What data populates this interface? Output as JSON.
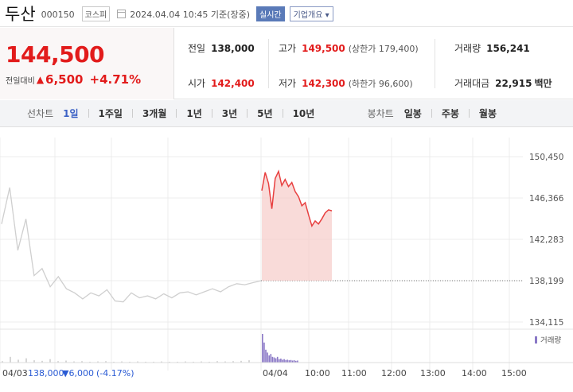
{
  "header": {
    "name": "두산",
    "code": "000150",
    "market": "코스피",
    "timestamp": "2024.04.04 10:45 기준(장중)",
    "realtime_label": "실시간",
    "company_label": "기업개요 ▾"
  },
  "price": {
    "current": "144,500",
    "change_label": "전일대비",
    "change_arrow": "▲",
    "change_amount": "6,500",
    "change_pct": "+4.71%"
  },
  "info": {
    "prev_label": "전일",
    "prev_val": "138,000",
    "open_label": "시가",
    "open_val": "142,400",
    "high_label": "고가",
    "high_val": "149,500",
    "upper_limit": "(상한가 179,400)",
    "low_label": "저가",
    "low_val": "142,300",
    "lower_limit": "(하한가 96,600)",
    "volume_label": "거래량",
    "volume_val": "156,241",
    "amount_label": "거래대금",
    "amount_val": "22,915",
    "amount_unit": "백만"
  },
  "tabs": {
    "line_title": "선차트",
    "line": [
      "1일",
      "1주일",
      "3개월",
      "1년",
      "3년",
      "5년",
      "10년"
    ],
    "candle_title": "봉차트",
    "candle": [
      "일봉",
      "주봉",
      "월봉"
    ]
  },
  "colors": {
    "up": "#e21b1b",
    "down": "#2a5bd4",
    "accent": "#3c62c6"
  },
  "chart_data": {
    "type": "line",
    "price_ticks": [
      "150,450",
      "146,366",
      "142,283",
      "138,199",
      "134,115"
    ],
    "ylim": [
      134115,
      150450
    ],
    "base_price": 138199,
    "x_ticks": [
      "04/03",
      "04/04",
      "10:00",
      "11:00",
      "12:00",
      "13:00",
      "14:00",
      "15:00"
    ],
    "volume_legend": "거래량",
    "prev_day_label": "04/03",
    "prev_close": "138,000",
    "prev_change": "▼6,000",
    "prev_pct": "(-4.17%)",
    "series": [
      {
        "values": [
          [
            0,
            143800
          ],
          [
            1,
            147400
          ],
          [
            2,
            141200
          ],
          [
            3,
            144300
          ],
          [
            4,
            138700
          ],
          [
            5,
            139400
          ],
          [
            6,
            137600
          ],
          [
            7,
            138600
          ],
          [
            8,
            137400
          ],
          [
            9,
            137000
          ],
          [
            10,
            136400
          ],
          [
            11,
            137000
          ],
          [
            12,
            136700
          ],
          [
            13,
            137300
          ],
          [
            14,
            136200
          ],
          [
            15,
            136100
          ],
          [
            16,
            137000
          ],
          [
            17,
            136500
          ],
          [
            18,
            136700
          ],
          [
            19,
            136400
          ],
          [
            20,
            136900
          ],
          [
            21,
            136500
          ],
          [
            22,
            137000
          ],
          [
            23,
            137100
          ],
          [
            24,
            136800
          ],
          [
            25,
            137100
          ],
          [
            26,
            137400
          ],
          [
            27,
            137100
          ],
          [
            28,
            137600
          ],
          [
            29,
            137900
          ],
          [
            30,
            137800
          ],
          [
            31,
            138000
          ],
          [
            32,
            138200
          ]
        ]
      },
      {
        "values": [
          [
            0,
            147100
          ],
          [
            1,
            148900
          ],
          [
            2,
            147800
          ],
          [
            3,
            145300
          ],
          [
            4,
            148300
          ],
          [
            5,
            149000
          ],
          [
            6,
            147600
          ],
          [
            7,
            148200
          ],
          [
            8,
            147500
          ],
          [
            9,
            147900
          ],
          [
            10,
            147000
          ],
          [
            11,
            146500
          ],
          [
            12,
            145600
          ],
          [
            13,
            145900
          ],
          [
            14,
            144700
          ],
          [
            15,
            143600
          ],
          [
            16,
            144100
          ],
          [
            17,
            143800
          ],
          [
            18,
            144300
          ],
          [
            19,
            144900
          ],
          [
            20,
            145200
          ],
          [
            21,
            145100
          ]
        ]
      }
    ],
    "volume": [
      [
        0,
        0.05
      ],
      [
        1,
        0.2
      ],
      [
        2,
        0.1
      ],
      [
        3,
        0.15
      ],
      [
        4,
        0.08
      ],
      [
        5,
        0.06
      ],
      [
        6,
        0.12
      ],
      [
        7,
        0.05
      ],
      [
        8,
        0.07
      ],
      [
        9,
        0.04
      ],
      [
        10,
        0.05
      ],
      [
        11,
        0.03
      ],
      [
        12,
        0.04
      ],
      [
        13,
        0.05
      ],
      [
        14,
        0.03
      ],
      [
        15,
        0.04
      ],
      [
        16,
        0.03
      ],
      [
        17,
        0.04
      ],
      [
        18,
        0.03
      ],
      [
        19,
        0.03
      ],
      [
        20,
        0.04
      ],
      [
        21,
        0.03
      ],
      [
        22,
        0.03
      ],
      [
        23,
        0.04
      ],
      [
        24,
        0.03
      ],
      [
        25,
        0.04
      ],
      [
        26,
        0.03
      ],
      [
        27,
        0.05
      ],
      [
        28,
        0.04
      ],
      [
        29,
        0.05
      ],
      [
        30,
        0.06
      ],
      [
        31,
        0.08
      ],
      [
        32,
        1.0
      ],
      [
        33,
        0.7
      ],
      [
        34,
        0.45
      ],
      [
        35,
        0.35
      ],
      [
        36,
        0.25
      ],
      [
        37,
        0.3
      ],
      [
        38,
        0.2
      ],
      [
        39,
        0.18
      ],
      [
        40,
        0.15
      ],
      [
        41,
        0.2
      ],
      [
        42,
        0.12
      ],
      [
        43,
        0.14
      ],
      [
        44,
        0.1
      ],
      [
        45,
        0.12
      ],
      [
        46,
        0.09
      ],
      [
        47,
        0.1
      ],
      [
        48,
        0.08
      ],
      [
        49,
        0.09
      ],
      [
        50,
        0.07
      ],
      [
        51,
        0.08
      ],
      [
        52,
        0.06
      ],
      [
        53,
        0.07
      ]
    ]
  }
}
